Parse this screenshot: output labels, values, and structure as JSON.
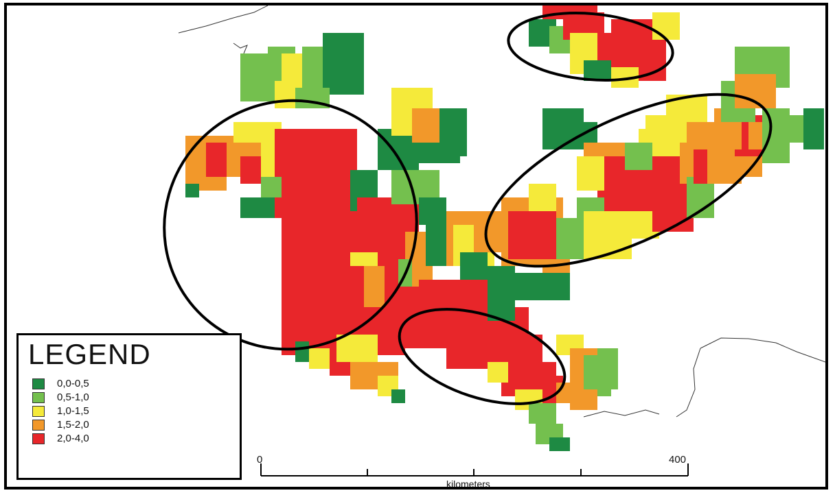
{
  "legend": {
    "title": "LEGEND",
    "classes": [
      {
        "label": "0,0-0,5",
        "color": "#1e8a43"
      },
      {
        "label": "0,5-1,0",
        "color": "#74c04e"
      },
      {
        "label": "1,0-1,5",
        "color": "#f5ea3a"
      },
      {
        "label": "1,5-2,0",
        "color": "#f2982a"
      },
      {
        "label": "2,0-4,0",
        "color": "#e8262a"
      }
    ]
  },
  "scale_bar": {
    "start_label": "0",
    "end_label": "400",
    "unit_label": "kilometers"
  },
  "highlight_ellipses": [
    {
      "name": "north-region"
    },
    {
      "name": "west-region"
    },
    {
      "name": "east-region"
    },
    {
      "name": "south-region"
    }
  ]
}
